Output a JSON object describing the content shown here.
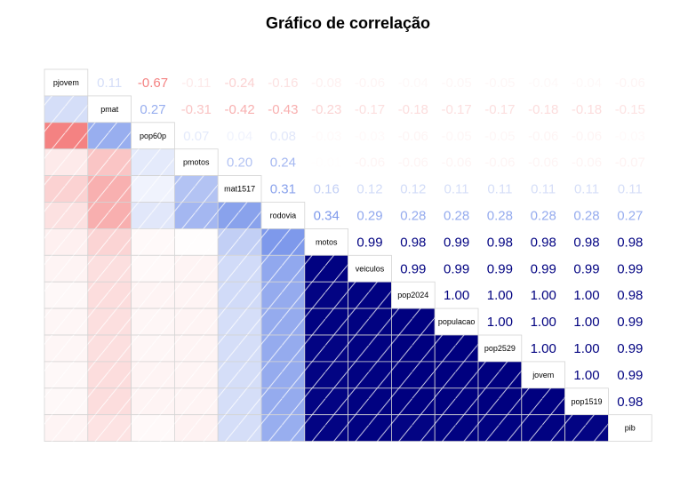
{
  "chart_data": {
    "type": "heatmap",
    "title": "Gráfico de correlação",
    "variables": [
      "pjovem",
      "pmat",
      "pop60p",
      "pmotos",
      "mat1517",
      "rodovia",
      "motos",
      "veiculos",
      "pop2024",
      "populacao",
      "pop2529",
      "jovem",
      "pop1519",
      "pib"
    ],
    "number_labels": [
      [
        "",
        "0.11",
        "-0.67",
        "-0.11",
        "-0.24",
        "-0.16",
        "-0.08",
        "-0.06",
        "-0.04",
        "-0.05",
        "-0.05",
        "-0.04",
        "-0.04",
        "-0.06"
      ],
      [
        "",
        "",
        "0.27",
        "-0.31",
        "-0.42",
        "-0.43",
        "-0.23",
        "-0.17",
        "-0.18",
        "-0.17",
        "-0.17",
        "-0.18",
        "-0.18",
        "-0.15"
      ],
      [
        "",
        "",
        "",
        "0.07",
        "0.04",
        "0.08",
        "-0.03",
        "-0.03",
        "-0.06",
        "-0.05",
        "-0.05",
        "-0.06",
        "-0.06",
        "-0.03"
      ],
      [
        "",
        "",
        "",
        "",
        "0.20",
        "0.24",
        "-0.01",
        "-0.06",
        "-0.06",
        "-0.06",
        "-0.06",
        "-0.06",
        "-0.06",
        "-0.07"
      ],
      [
        "",
        "",
        "",
        "",
        "",
        "0.31",
        "0.16",
        "0.12",
        "0.12",
        "0.11",
        "0.11",
        "0.11",
        "0.11",
        "0.11"
      ],
      [
        "",
        "",
        "",
        "",
        "",
        "",
        "0.34",
        "0.29",
        "0.28",
        "0.28",
        "0.28",
        "0.28",
        "0.28",
        "0.27"
      ],
      [
        "",
        "",
        "",
        "",
        "",
        "",
        "",
        "0.99",
        "0.98",
        "0.99",
        "0.98",
        "0.98",
        "0.98",
        "0.98"
      ],
      [
        "",
        "",
        "",
        "",
        "",
        "",
        "",
        "",
        "0.99",
        "0.99",
        "0.99",
        "0.99",
        "0.99",
        "0.99"
      ],
      [
        "",
        "",
        "",
        "",
        "",
        "",
        "",
        "",
        "",
        "1.00",
        "1.00",
        "1.00",
        "1.00",
        "0.98"
      ],
      [
        "",
        "",
        "",
        "",
        "",
        "",
        "",
        "",
        "",
        "",
        "1.00",
        "1.00",
        "1.00",
        "0.99"
      ],
      [
        "",
        "",
        "",
        "",
        "",
        "",
        "",
        "",
        "",
        "",
        "",
        "1.00",
        "1.00",
        "0.99"
      ],
      [
        "",
        "",
        "",
        "",
        "",
        "",
        "",
        "",
        "",
        "",
        "",
        "",
        "1.00",
        "0.99"
      ],
      [
        "",
        "",
        "",
        "",
        "",
        "",
        "",
        "",
        "",
        "",
        "",
        "",
        "",
        "0.98"
      ],
      [
        "",
        "",
        "",
        "",
        "",
        "",
        "",
        "",
        "",
        "",
        "",
        "",
        "",
        ""
      ]
    ],
    "lower_shading": "mirror of upper-triangle correlations, shown as colored hatched cells",
    "color_scale": {
      "negative": "#ef4444",
      "zero": "#ffffff",
      "positive": "#00007f",
      "mid_positive": "#4169e1"
    },
    "grid": true,
    "legend": "none"
  }
}
